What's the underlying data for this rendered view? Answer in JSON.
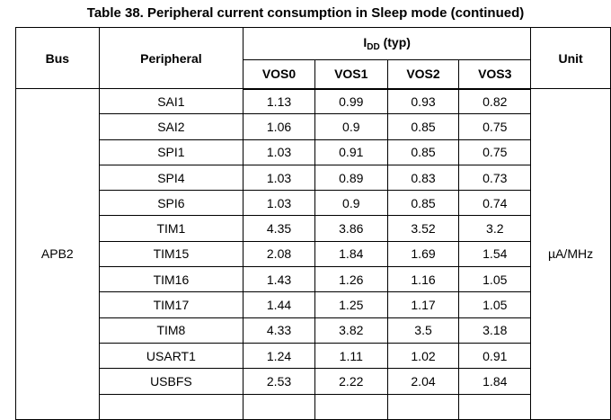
{
  "title": "Table 38. Peripheral current consumption in Sleep mode (continued)",
  "header": {
    "bus": "Bus",
    "peripheral": "Peripheral",
    "idd_main": "I",
    "idd_sub": "DD",
    "idd_suffix": " (typ)",
    "unit": "Unit",
    "vos": [
      "VOS0",
      "VOS1",
      "VOS2",
      "VOS3"
    ]
  },
  "bus_value": "APB2",
  "unit_value": "µA/MHz",
  "rows": [
    {
      "peripheral": "SAI1",
      "vos": [
        "1.13",
        "0.99",
        "0.93",
        "0.82"
      ]
    },
    {
      "peripheral": "SAI2",
      "vos": [
        "1.06",
        "0.9",
        "0.85",
        "0.75"
      ]
    },
    {
      "peripheral": "SPI1",
      "vos": [
        "1.03",
        "0.91",
        "0.85",
        "0.75"
      ]
    },
    {
      "peripheral": "SPI4",
      "vos": [
        "1.03",
        "0.89",
        "0.83",
        "0.73"
      ]
    },
    {
      "peripheral": "SPI6",
      "vos": [
        "1.03",
        "0.9",
        "0.85",
        "0.74"
      ]
    },
    {
      "peripheral": "TIM1",
      "vos": [
        "4.35",
        "3.86",
        "3.52",
        "3.2"
      ]
    },
    {
      "peripheral": "TIM15",
      "vos": [
        "2.08",
        "1.84",
        "1.69",
        "1.54"
      ]
    },
    {
      "peripheral": "TIM16",
      "vos": [
        "1.43",
        "1.26",
        "1.16",
        "1.05"
      ]
    },
    {
      "peripheral": "TIM17",
      "vos": [
        "1.44",
        "1.25",
        "1.17",
        "1.05"
      ]
    },
    {
      "peripheral": "TIM8",
      "vos": [
        "4.33",
        "3.82",
        "3.5",
        "3.18"
      ]
    },
    {
      "peripheral": "USART1",
      "vos": [
        "1.24",
        "1.11",
        "1.02",
        "0.91"
      ]
    },
    {
      "peripheral": "USBFS",
      "vos": [
        "2.53",
        "2.22",
        "2.04",
        "1.84"
      ]
    }
  ]
}
